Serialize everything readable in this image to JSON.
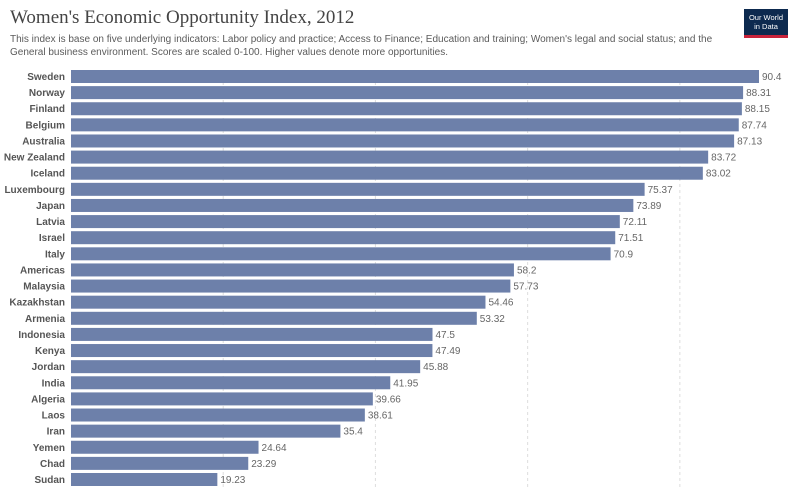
{
  "header": {
    "title": "Women's Economic Opportunity Index, 2012",
    "subtitle": "This index is base on five underlying indicators: Labor policy and practice; Access to Finance; Education and training; Women's legal and social status; and the General business environment. Scores are scaled 0-100. Higher values denote more opportunities.",
    "logo_line1": "Our World",
    "logo_line2": "in Data"
  },
  "chart_data": {
    "type": "bar",
    "orientation": "horizontal",
    "categories": [
      "Sweden",
      "Norway",
      "Finland",
      "Belgium",
      "Australia",
      "New Zealand",
      "Iceland",
      "Luxembourg",
      "Japan",
      "Latvia",
      "Israel",
      "Italy",
      "Americas",
      "Malaysia",
      "Kazakhstan",
      "Armenia",
      "Indonesia",
      "Kenya",
      "Jordan",
      "India",
      "Algeria",
      "Laos",
      "Iran",
      "Yemen",
      "Chad",
      "Sudan"
    ],
    "values": [
      90.4,
      88.31,
      88.15,
      87.74,
      87.13,
      83.72,
      83.02,
      75.37,
      73.89,
      72.11,
      71.51,
      70.9,
      58.2,
      57.73,
      54.46,
      53.32,
      47.5,
      47.49,
      45.88,
      41.95,
      39.66,
      38.61,
      35.4,
      24.64,
      23.29,
      19.23
    ],
    "value_labels": [
      "90.4",
      "88.31",
      "88.15",
      "87.74",
      "87.13",
      "83.72",
      "83.02",
      "75.37",
      "73.89",
      "72.11",
      "71.51",
      "70.9",
      "58.2",
      "57.73",
      "54.46",
      "53.32",
      "47.5",
      "47.49",
      "45.88",
      "41.95",
      "39.66",
      "38.61",
      "35.4",
      "24.64",
      "23.29",
      "19.23"
    ],
    "xlim": [
      0,
      90.4
    ],
    "grid": true,
    "bar_color": "#6d80aa",
    "grid_color": "#dddddd"
  }
}
